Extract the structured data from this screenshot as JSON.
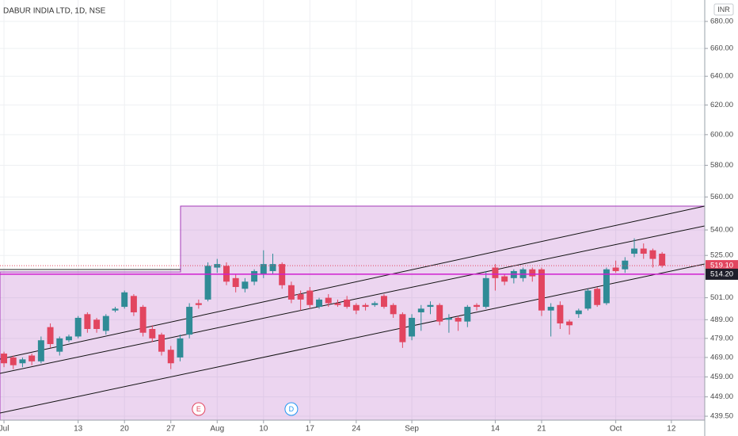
{
  "chart_data": {
    "type": "candlestick",
    "title": "DABUR INDIA LTD, 1D, NSE",
    "currency": "INR",
    "log": true,
    "grid": true,
    "up_color": "#2f8b96",
    "down_color": "#e2455f",
    "xlim": [
      -0.43,
      75.6
    ],
    "ylim": [
      437.6,
      696.3
    ],
    "xticks": [
      {
        "value": 0,
        "label": "Jul"
      },
      {
        "value": 8,
        "label": "13"
      },
      {
        "value": 13,
        "label": "20"
      },
      {
        "value": 18,
        "label": "27"
      },
      {
        "value": 23,
        "label": "Aug"
      },
      {
        "value": 28,
        "label": "10"
      },
      {
        "value": 33,
        "label": "17"
      },
      {
        "value": 38,
        "label": "24"
      },
      {
        "value": 44,
        "label": "Sep"
      },
      {
        "value": 53,
        "label": "14"
      },
      {
        "value": 58,
        "label": "21"
      },
      {
        "value": 66,
        "label": "Oct"
      },
      {
        "value": 72,
        "label": "12"
      }
    ],
    "yticks": [
      {
        "value": 680,
        "label": "680.00"
      },
      {
        "value": 660,
        "label": "660.00"
      },
      {
        "value": 640,
        "label": "640.00"
      },
      {
        "value": 620,
        "label": "620.00"
      },
      {
        "value": 600,
        "label": "600.00"
      },
      {
        "value": 580,
        "label": "580.00"
      },
      {
        "value": 560,
        "label": "560.00"
      },
      {
        "value": 540,
        "label": "540.00"
      },
      {
        "value": 525,
        "label": "525.00"
      },
      {
        "value": 501,
        "label": "501.00"
      },
      {
        "value": 489,
        "label": "489.00"
      },
      {
        "value": 479,
        "label": "479.00"
      },
      {
        "value": 469,
        "label": "469.00"
      },
      {
        "value": 459,
        "label": "459.00"
      },
      {
        "value": 449,
        "label": "449.00"
      },
      {
        "value": 439.5,
        "label": "439.50"
      }
    ],
    "open": [
      471,
      469,
      466,
      470,
      467,
      485,
      472,
      478,
      480,
      492,
      489,
      483,
      494,
      496,
      502,
      496,
      484,
      481,
      473,
      469,
      481,
      498,
      500,
      518,
      519,
      512,
      506,
      510,
      514,
      516,
      520,
      508,
      503,
      505,
      496,
      501,
      498,
      500,
      497,
      497,
      497,
      502,
      497,
      492,
      480,
      493,
      496,
      497,
      489,
      490,
      488,
      497,
      496,
      518,
      513,
      512,
      512,
      517,
      517,
      494,
      497,
      488,
      492,
      495,
      506,
      498,
      518,
      517,
      526,
      529,
      528,
      526
    ],
    "high": [
      472,
      470,
      469,
      471,
      480,
      487,
      480,
      481,
      491,
      493,
      490,
      492,
      496,
      505,
      503,
      497,
      486,
      482,
      475,
      481,
      498,
      500,
      521,
      523,
      521,
      514,
      512,
      517,
      528,
      526,
      521,
      510,
      505,
      507,
      501,
      503,
      500,
      502,
      498,
      498,
      499,
      503,
      498,
      493,
      492,
      497,
      499,
      498,
      492,
      491,
      497,
      498,
      516,
      520,
      514,
      517,
      518,
      518,
      518,
      498,
      499,
      489,
      495,
      506,
      507,
      518,
      522,
      524,
      535,
      532,
      529,
      527
    ],
    "low": [
      464,
      463,
      464,
      465,
      466,
      474,
      470,
      477,
      479,
      482,
      482,
      481,
      493,
      495,
      491,
      480,
      477,
      470,
      463,
      467,
      479,
      495,
      499,
      515,
      508,
      504,
      504,
      508,
      512,
      514,
      506,
      498,
      494,
      495,
      495,
      496,
      496,
      495,
      492,
      494,
      496,
      495,
      490,
      474,
      478,
      483,
      492,
      486,
      482,
      483,
      485,
      494,
      495,
      505,
      508,
      509,
      510,
      510,
      491,
      480,
      484,
      481,
      490,
      494,
      496,
      497,
      515,
      515,
      524,
      523,
      518,
      518
    ],
    "close": [
      466,
      465,
      468,
      467,
      478,
      476,
      479,
      480,
      490,
      484,
      484,
      491,
      495,
      504,
      493,
      482,
      479,
      472,
      466,
      479,
      496,
      497,
      519,
      520,
      510,
      507,
      510,
      516,
      520,
      520,
      508,
      500,
      500,
      497,
      500,
      498,
      497,
      496,
      494,
      496,
      498,
      496,
      492,
      477,
      490,
      495,
      497,
      488,
      490,
      488,
      496,
      496,
      512,
      512,
      510,
      516,
      517,
      513,
      494,
      496,
      487,
      486,
      494,
      505,
      497,
      517,
      516,
      522,
      529,
      526,
      523,
      519.1
    ],
    "last_price": {
      "value": 519.1,
      "label": "519.10"
    },
    "alert_price": {
      "value": 514.2,
      "label": "514.20"
    },
    "events": [
      {
        "label": "E",
        "x": 21
      },
      {
        "label": "D",
        "x": 31
      }
    ]
  }
}
